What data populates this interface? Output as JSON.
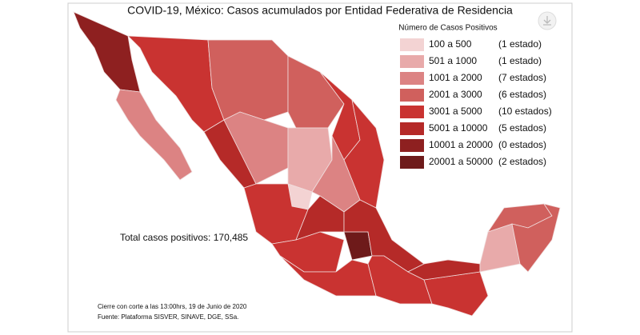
{
  "title": "COVID-19, México: Casos acumulados por Entidad Federativa de Residencia",
  "legend": {
    "title": "Número de Casos Positivos",
    "items": [
      {
        "range": "100 a 500",
        "count": "(1 estado)",
        "color": "#f3d3d3"
      },
      {
        "range": "501 a 1000",
        "count": "(1 estado)",
        "color": "#e8aaaa"
      },
      {
        "range": "1001 a 2000",
        "count": "(7 estados)",
        "color": "#dc8383"
      },
      {
        "range": "2001 a 3000",
        "count": "(6 estados)",
        "color": "#d0605d"
      },
      {
        "range": "3001 a 5000",
        "count": "(10 estados)",
        "color": "#c93331"
      },
      {
        "range": "5001 a 10000",
        "count": "(5 estados)",
        "color": "#b52a28"
      },
      {
        "range": "10001 a 20000",
        "count": "(0 estados)",
        "color": "#8e2020"
      },
      {
        "range": "20001 a 50000",
        "count": "(2 estados)",
        "color": "#6e1a1a"
      }
    ]
  },
  "total": "Total casos positivos: 170,485",
  "footer": [
    "Cierre con corte a las 13:00hrs, 19 de Junio de 2020",
    "Fuente: Plataforma SISVER, SINAVE, DGE, SSa."
  ]
}
